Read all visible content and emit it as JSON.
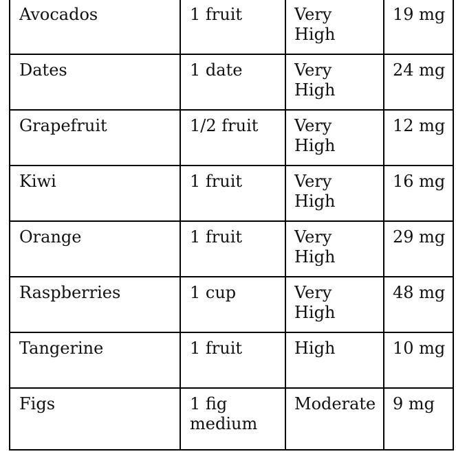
{
  "table": {
    "rows": [
      {
        "food": "Avocados",
        "serving": "1 fruit",
        "level": "Very High",
        "amount": "19 mg"
      },
      {
        "food": "Dates",
        "serving": "1 date",
        "level": "Very High",
        "amount": "24 mg"
      },
      {
        "food": "Grapefruit",
        "serving": "1/2 fruit",
        "level": "Very High",
        "amount": "12 mg"
      },
      {
        "food": "Kiwi",
        "serving": "1 fruit",
        "level": "Very High",
        "amount": "16 mg"
      },
      {
        "food": "Orange",
        "serving": "1 fruit",
        "level": "Very High",
        "amount": "29 mg"
      },
      {
        "food": "Raspberries",
        "serving": "1 cup",
        "level": "Very High",
        "amount": "48 mg"
      },
      {
        "food": "Tangerine",
        "serving": "1 fruit",
        "level": "High",
        "amount": "10 mg"
      },
      {
        "food": "Figs",
        "serving": "1 fig medium",
        "level": "Moderate",
        "amount": "9 mg"
      }
    ]
  }
}
